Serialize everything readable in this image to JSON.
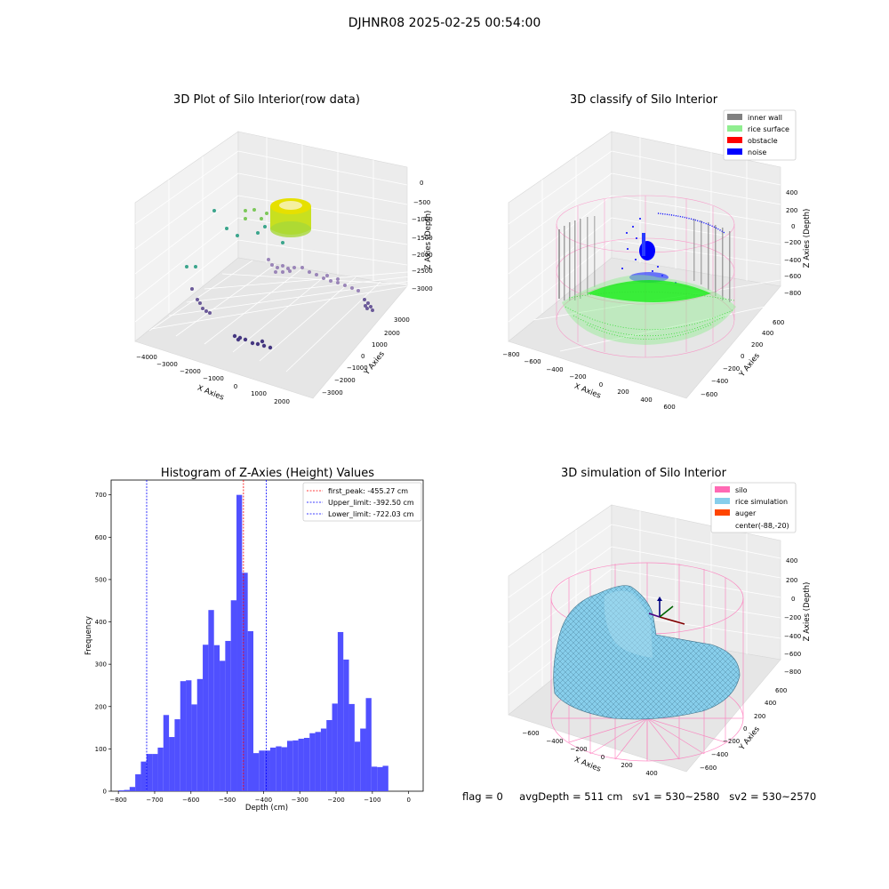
{
  "suptitle": "DJHNR08 2025-02-25 00:54:00",
  "footer": {
    "flag": "flag = 0",
    "avg_depth": "avgDepth = 511 cm",
    "sv1": "sv1 = 530~2580",
    "sv2": "sv2 = 530~2570"
  },
  "colors": {
    "histogram_bar": "#5050ff",
    "inner_wall": "#808080",
    "rice_surface": "#90ee90",
    "obstacle": "#ff0000",
    "noise": "#0000ff",
    "silo": "#ff69b4",
    "rice_simulation": "#87ceeb",
    "auger": "#ff4500",
    "first_peak_line": "#ff0000",
    "limit_line": "#0000ff"
  },
  "chart_data": [
    {
      "type": "scatter",
      "projection": "3d",
      "title": "3D Plot of Silo Interior(row data)",
      "xlabel": "X Axies",
      "ylabel": "Y Axies",
      "zlabel": "Z Axies (Depth)",
      "xticks": [
        "−4000",
        "−3000",
        "−2000",
        "−1000",
        "0",
        "1000",
        "2000"
      ],
      "yticks": [
        "3000",
        "2000",
        "1000",
        "0",
        "−1000",
        "−2000",
        "−3000"
      ],
      "zticks": [
        "0",
        "−500",
        "−1000",
        "−1500",
        "−2000",
        "−2500",
        "−3000"
      ],
      "xlim": [
        -4500,
        2500
      ],
      "ylim": [
        -3500,
        3500
      ],
      "zlim": [
        -3500,
        200
      ],
      "colormap": "viridis"
    },
    {
      "type": "scatter",
      "projection": "3d",
      "title": "3D classify of Silo Interior",
      "xlabel": "X Axies",
      "ylabel": "Y Axies",
      "zlabel": "Z Axies (Depth)",
      "xticks": [
        "−800",
        "−600",
        "−400",
        "−200",
        "0",
        "200",
        "400",
        "600"
      ],
      "yticks": [
        "600",
        "400",
        "200",
        "0",
        "−200",
        "−400",
        "−600"
      ],
      "zticks": [
        "400",
        "200",
        "0",
        "−200",
        "−400",
        "−600",
        "−800"
      ],
      "legend": [
        "inner wall",
        "rice surface",
        "obstacle",
        "noise"
      ],
      "legend_position": "top-right"
    },
    {
      "type": "bar",
      "title": "Histogram of Z-Axies (Height) Values",
      "xlabel": "Depth (cm)",
      "ylabel": "Frequency",
      "xlim": [
        -820,
        40
      ],
      "ylim": [
        0,
        735
      ],
      "xticks": [
        -800,
        -700,
        -600,
        -500,
        -400,
        -300,
        -200,
        -100,
        0
      ],
      "xtick_labels": [
        "−800",
        "−700",
        "−600",
        "−500",
        "−400",
        "−300",
        "−200",
        "−100",
        "0"
      ],
      "yticks": [
        0,
        100,
        200,
        300,
        400,
        500,
        600,
        700
      ],
      "bin_start": -800,
      "bin_width": 15.5,
      "values": [
        2,
        3,
        10,
        40,
        70,
        88,
        88,
        103,
        180,
        128,
        170,
        260,
        262,
        205,
        265,
        346,
        428,
        345,
        308,
        355,
        451,
        700,
        516,
        378,
        90,
        96,
        96,
        103,
        106,
        104,
        119,
        120,
        124,
        126,
        137,
        140,
        148,
        168,
        207,
        376,
        311,
        206,
        117,
        148,
        220,
        58,
        57,
        60
      ],
      "vlines": [
        {
          "label": "first_peak: -455.27 cm",
          "x": -455.27,
          "color": "#ff0000"
        },
        {
          "label": "Upper_limit: -392.50 cm",
          "x": -392.5,
          "color": "#0000ff"
        },
        {
          "label": "Lower_limit: -722.03 cm",
          "x": -722.03,
          "color": "#0000ff"
        }
      ],
      "legend_position": "top-right"
    },
    {
      "type": "surface",
      "projection": "3d",
      "title": "3D simulation of Silo Interior",
      "xlabel": "X Axies",
      "ylabel": "Y Axies",
      "zlabel": "Z Axies (Depth)",
      "xticks": [
        "−600",
        "−400",
        "−200",
        "0",
        "200",
        "400"
      ],
      "yticks": [
        "600",
        "400",
        "200",
        "0",
        "−200",
        "−400",
        "−600"
      ],
      "zticks": [
        "400",
        "200",
        "0",
        "−200",
        "−400",
        "−600",
        "−800"
      ],
      "legend": [
        "silo",
        "rice simulation",
        "auger",
        "center(-88,-20)"
      ],
      "legend_position": "top-right"
    }
  ]
}
